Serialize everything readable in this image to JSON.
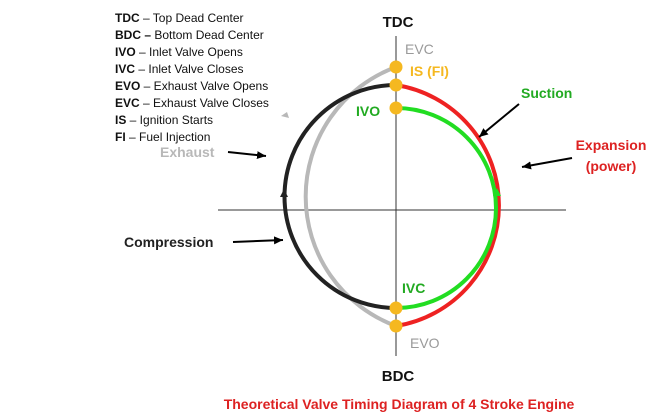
{
  "legend": [
    {
      "abbr": "TDC",
      "desc": " – Top Dead Center"
    },
    {
      "abbr": "BDC –",
      "desc": " Bottom Dead Center"
    },
    {
      "abbr": "IVO",
      "desc": " – Inlet Valve Opens"
    },
    {
      "abbr": "IVC",
      "desc": " – Inlet Valve Closes"
    },
    {
      "abbr": "EVO",
      "desc": " – Exhaust Valve Opens"
    },
    {
      "abbr": "EVC",
      "desc": " – Exhaust Valve Closes"
    },
    {
      "abbr": "IS",
      "desc": " – Ignition Starts"
    },
    {
      "abbr": "FI",
      "desc": " – Fuel Injection"
    }
  ],
  "labels": {
    "tdc": "TDC",
    "bdc": "BDC",
    "evc": "EVC",
    "is_fi": "IS (FI)",
    "ivo": "IVO",
    "ivc": "IVC",
    "evo": "EVO",
    "suction": "Suction",
    "expansion_line1": "Expansion",
    "expansion_line2": "(power)",
    "exhaust": "Exhaust",
    "compression": "Compression"
  },
  "title": "Theoretical Valve Timing Diagram of 4 Stroke Engine",
  "colors": {
    "exhaust": "#b8b8b8",
    "compression": "#222222",
    "suction": "#22dd22",
    "expansion": "#ee2222",
    "marker": "#f5b820",
    "evc_label": "#9a9a9a",
    "is_label": "#f5b820",
    "ivo_label": "#22aa22",
    "suction_label": "#22aa22",
    "expansion_label": "#dd2222",
    "title": "#dd2222"
  }
}
